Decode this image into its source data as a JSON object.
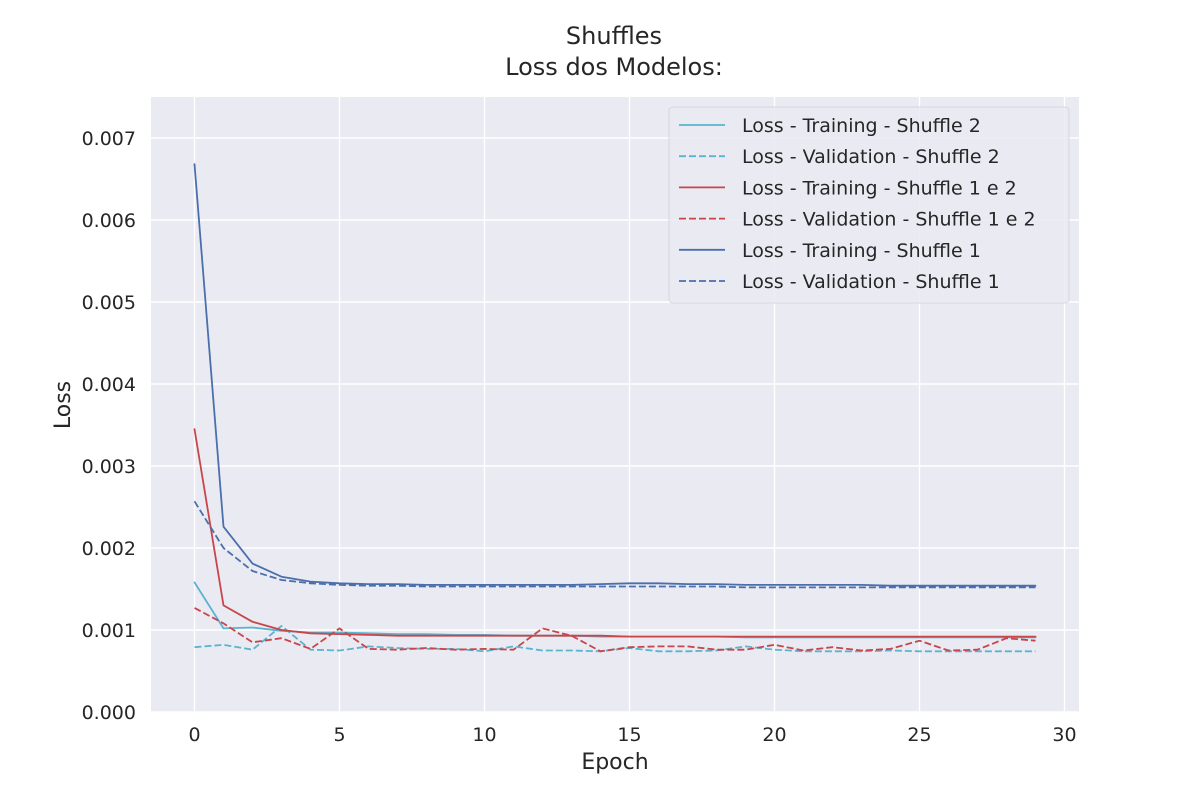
{
  "chart_data": {
    "type": "line",
    "title": "Shuffles",
    "subtitle": "Loss dos Modelos:",
    "xlabel": "Epoch",
    "ylabel": "Loss",
    "xlim": [
      -1.5,
      30.5
    ],
    "ylim": [
      0,
      0.0075
    ],
    "xticks": [
      0,
      5,
      10,
      15,
      20,
      25,
      30
    ],
    "xtick_labels": [
      "0",
      "5",
      "10",
      "15",
      "20",
      "25",
      "30"
    ],
    "yticks": [
      0,
      0.001,
      0.002,
      0.003,
      0.004,
      0.005,
      0.006,
      0.007
    ],
    "ytick_labels": [
      "0.000",
      "0.001",
      "0.002",
      "0.003",
      "0.004",
      "0.005",
      "0.006",
      "0.007"
    ],
    "grid": true,
    "legend_position": "top-right",
    "x": [
      0,
      1,
      2,
      3,
      4,
      5,
      6,
      7,
      8,
      9,
      10,
      11,
      12,
      13,
      14,
      15,
      16,
      17,
      18,
      19,
      20,
      21,
      22,
      23,
      24,
      25,
      26,
      27,
      28,
      29
    ],
    "series": [
      {
        "name": "Loss - Training - Shuffle 2",
        "color": "#5ab4d0",
        "dash": "solid",
        "values": [
          0.00158,
          0.00102,
          0.00103,
          0.00099,
          0.00097,
          0.00097,
          0.00096,
          0.00095,
          0.00095,
          0.00094,
          0.00094,
          0.00093,
          0.00093,
          0.00093,
          0.00092,
          0.00092,
          0.00092,
          0.00092,
          0.00092,
          0.00091,
          0.00091,
          0.00091,
          0.00091,
          0.00091,
          0.00091,
          0.00091,
          0.00091,
          0.00091,
          0.00091,
          0.00091
        ]
      },
      {
        "name": "Loss - Validation - Shuffle 2",
        "color": "#5ab4d0",
        "dash": "dashed",
        "values": [
          0.00079,
          0.00082,
          0.00076,
          0.00105,
          0.00076,
          0.00075,
          0.0008,
          0.00078,
          0.00077,
          0.00077,
          0.00074,
          0.0008,
          0.00075,
          0.00075,
          0.00074,
          0.00078,
          0.00074,
          0.00074,
          0.00075,
          0.0008,
          0.00076,
          0.00074,
          0.00074,
          0.00074,
          0.00075,
          0.00074,
          0.00074,
          0.00074,
          0.00074,
          0.00074
        ]
      },
      {
        "name": "Loss - Training - Shuffle 1 e 2",
        "color": "#c8454a",
        "dash": "solid",
        "values": [
          0.00345,
          0.0013,
          0.0011,
          0.001,
          0.00096,
          0.00095,
          0.00094,
          0.00093,
          0.00093,
          0.00093,
          0.00093,
          0.00093,
          0.00093,
          0.00093,
          0.00093,
          0.00092,
          0.00092,
          0.00092,
          0.00092,
          0.00092,
          0.00092,
          0.00092,
          0.00092,
          0.00092,
          0.00092,
          0.00092,
          0.00092,
          0.00092,
          0.00092,
          0.00092
        ]
      },
      {
        "name": "Loss - Validation - Shuffle 1 e 2",
        "color": "#c8454a",
        "dash": "dashed",
        "values": [
          0.00127,
          0.00108,
          0.00085,
          0.0009,
          0.00077,
          0.00102,
          0.00077,
          0.00076,
          0.00078,
          0.00076,
          0.00077,
          0.00076,
          0.00102,
          0.00093,
          0.00074,
          0.00079,
          0.0008,
          0.0008,
          0.00076,
          0.00076,
          0.00082,
          0.00075,
          0.00079,
          0.00075,
          0.00077,
          0.00087,
          0.00075,
          0.00076,
          0.0009,
          0.00087
        ]
      },
      {
        "name": "Loss - Training - Shuffle 1",
        "color": "#4a6fac",
        "dash": "solid",
        "values": [
          0.00668,
          0.00226,
          0.00181,
          0.00165,
          0.00159,
          0.00157,
          0.00156,
          0.00156,
          0.00155,
          0.00155,
          0.00155,
          0.00155,
          0.00155,
          0.00155,
          0.00156,
          0.00157,
          0.00157,
          0.00156,
          0.00156,
          0.00155,
          0.00155,
          0.00155,
          0.00155,
          0.00155,
          0.00154,
          0.00154,
          0.00154,
          0.00154,
          0.00154,
          0.00154
        ]
      },
      {
        "name": "Loss - Validation - Shuffle 1",
        "color": "#4a6fac",
        "dash": "dashed",
        "values": [
          0.00257,
          0.002,
          0.00172,
          0.00161,
          0.00157,
          0.00155,
          0.00154,
          0.00154,
          0.00153,
          0.00153,
          0.00153,
          0.00153,
          0.00153,
          0.00153,
          0.00153,
          0.00153,
          0.00153,
          0.00153,
          0.00153,
          0.00152,
          0.00152,
          0.00152,
          0.00152,
          0.00152,
          0.00152,
          0.00152,
          0.00152,
          0.00152,
          0.00152,
          0.00152
        ]
      }
    ]
  }
}
